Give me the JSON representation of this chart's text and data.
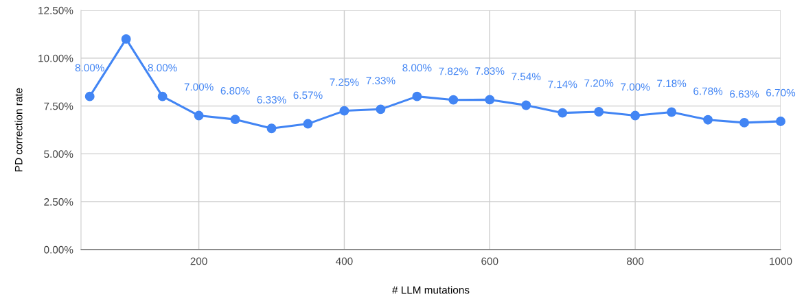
{
  "chart_data": {
    "type": "line",
    "xlabel": "# LLM mutations",
    "ylabel": "PD correction rate",
    "x": [
      50,
      100,
      150,
      200,
      250,
      300,
      350,
      400,
      450,
      500,
      550,
      600,
      650,
      700,
      750,
      800,
      850,
      900,
      950,
      1000
    ],
    "series": [
      {
        "color": "#4285f4",
        "values": [
          8.0,
          11.0,
          8.0,
          7.0,
          6.8,
          6.33,
          6.57,
          7.25,
          7.33,
          8.0,
          7.82,
          7.83,
          7.54,
          7.14,
          7.2,
          7.0,
          7.18,
          6.78,
          6.63,
          6.7
        ],
        "value_labels": [
          "8.00%",
          null,
          "8.00%",
          "7.00%",
          "6.80%",
          "6.33%",
          "6.57%",
          "7.25%",
          "7.33%",
          "8.00%",
          "7.82%",
          "7.83%",
          "7.54%",
          "7.14%",
          "7.20%",
          "7.00%",
          "7.18%",
          "6.78%",
          "6.63%",
          "6.70%"
        ]
      }
    ],
    "xlim": [
      38,
      1000
    ],
    "xticks": [
      200,
      400,
      600,
      800,
      1000
    ],
    "ylim": [
      0,
      12.5
    ],
    "yticks": [
      {
        "value": 0,
        "label": "0.00%"
      },
      {
        "value": 2.5,
        "label": "2.50%"
      },
      {
        "value": 5,
        "label": "5.00%"
      },
      {
        "value": 7.5,
        "label": "7.50%"
      },
      {
        "value": 10,
        "label": "10.00%"
      },
      {
        "value": 12.5,
        "label": "12.50%"
      }
    ],
    "grid": true,
    "marker": "circle",
    "line_style": "solid"
  }
}
